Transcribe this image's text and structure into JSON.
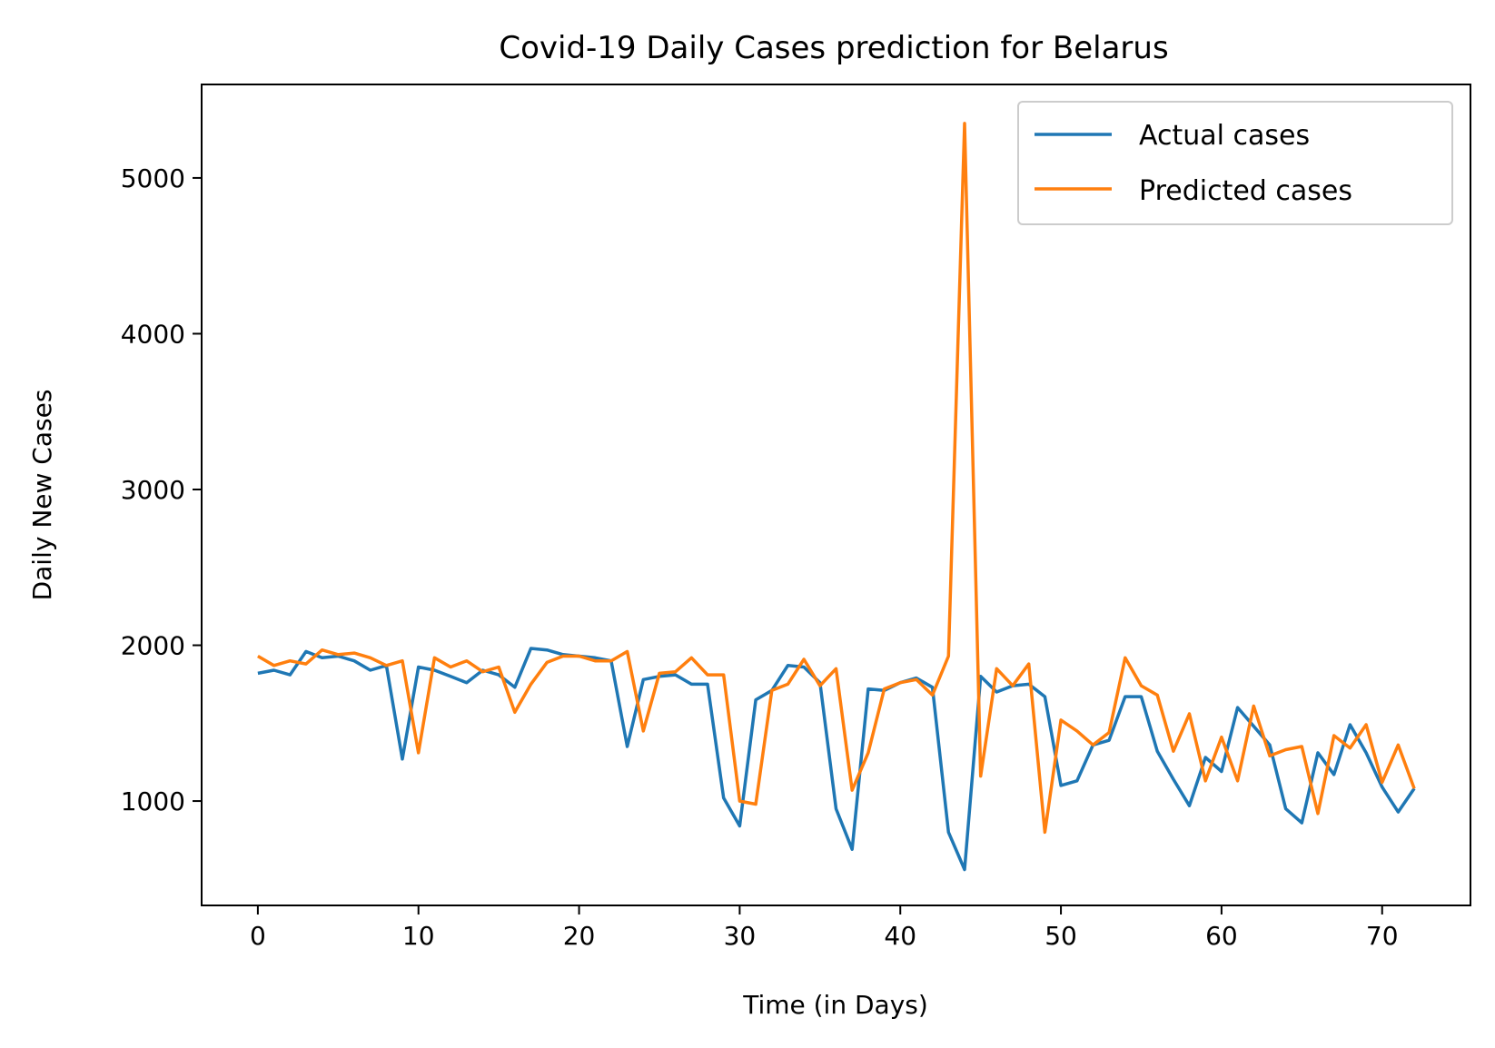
{
  "chart_data": {
    "type": "line",
    "title": "Covid-19 Daily Cases prediction for Belarus",
    "xlabel": "Time (in Days)",
    "ylabel": "Daily New Cases",
    "xlim": [
      -3.5,
      75.5
    ],
    "ylim": [
      330,
      5600
    ],
    "xticks": [
      0,
      10,
      20,
      30,
      40,
      50,
      60,
      70
    ],
    "yticks": [
      1000,
      2000,
      3000,
      4000,
      5000
    ],
    "grid": false,
    "legend": "top-right",
    "x": [
      0,
      1,
      2,
      3,
      4,
      5,
      6,
      7,
      8,
      9,
      10,
      11,
      12,
      13,
      14,
      15,
      16,
      17,
      18,
      19,
      20,
      21,
      22,
      23,
      24,
      25,
      26,
      27,
      28,
      29,
      30,
      31,
      32,
      33,
      34,
      35,
      36,
      37,
      38,
      39,
      40,
      41,
      42,
      43,
      44,
      45,
      46,
      47,
      48,
      49,
      50,
      51,
      52,
      53,
      54,
      55,
      56,
      57,
      58,
      59,
      60,
      61,
      62,
      63,
      64,
      65,
      66,
      67,
      68,
      69,
      70,
      71,
      72
    ],
    "series": [
      {
        "name": "Actual cases",
        "color": "#1f77b4",
        "values": [
          1820,
          1840,
          1810,
          1960,
          1920,
          1930,
          1900,
          1840,
          1870,
          1270,
          1860,
          1840,
          1800,
          1760,
          1840,
          1810,
          1730,
          1980,
          1970,
          1940,
          1930,
          1920,
          1900,
          1350,
          1780,
          1800,
          1810,
          1750,
          1750,
          1020,
          840,
          1650,
          1710,
          1870,
          1860,
          1760,
          950,
          690,
          1720,
          1710,
          1760,
          1790,
          1730,
          800,
          560,
          1800,
          1700,
          1740,
          1750,
          1670,
          1100,
          1130,
          1360,
          1390,
          1670,
          1670,
          1320,
          1140,
          970,
          1280,
          1190,
          1600,
          1480,
          1360,
          950,
          860,
          1310,
          1170,
          1490,
          1310,
          1090,
          930,
          1080
        ]
      },
      {
        "name": "Predicted cases",
        "color": "#ff7f0e",
        "values": [
          1930,
          1870,
          1900,
          1880,
          1970,
          1940,
          1950,
          1920,
          1870,
          1900,
          1310,
          1920,
          1860,
          1900,
          1830,
          1860,
          1570,
          1750,
          1890,
          1930,
          1930,
          1900,
          1900,
          1960,
          1450,
          1820,
          1830,
          1920,
          1810,
          1810,
          1000,
          980,
          1710,
          1750,
          1910,
          1740,
          1850,
          1070,
          1310,
          1720,
          1760,
          1780,
          1680,
          1930,
          5350,
          1160,
          1850,
          1740,
          1880,
          800,
          1520,
          1450,
          1360,
          1440,
          1920,
          1740,
          1680,
          1320,
          1560,
          1130,
          1410,
          1130,
          1610,
          1290,
          1330,
          1350,
          920,
          1420,
          1340,
          1490,
          1120,
          1360,
          1080
        ]
      }
    ]
  }
}
